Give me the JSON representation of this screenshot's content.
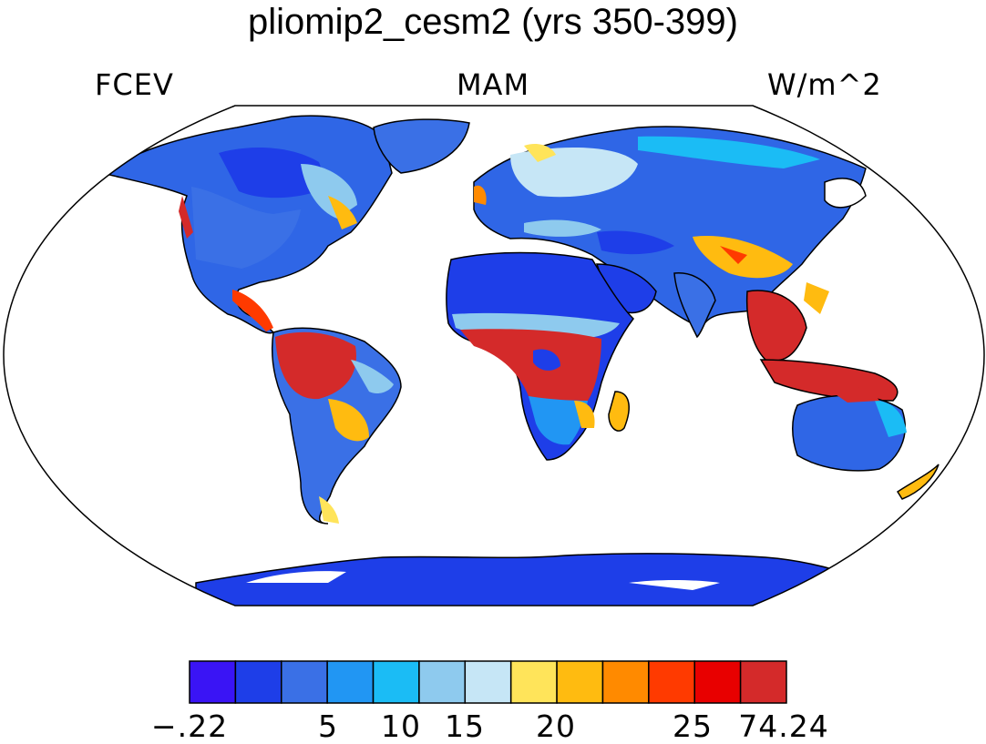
{
  "title": "pliomip2_cesm2 (yrs 350-399)",
  "left_label": "FCEV",
  "center_label": "MAM",
  "right_label": "W/m^2",
  "colorbar": {
    "colors": [
      "#3a14f5",
      "#1e3ee8",
      "#3a70e6",
      "#2196f3",
      "#1bbcf5",
      "#8ecaee",
      "#c6e6f6",
      "#ffe45a",
      "#ffbb10",
      "#ff8a00",
      "#ff3a00",
      "#e80000",
      "#d42a2a"
    ],
    "tick_labels": [
      "−.22",
      "5",
      "10",
      "15",
      "20",
      "25",
      "74.24"
    ]
  },
  "colors": {
    "ocean": "#ffffff",
    "coast": "#000000",
    "frame": "#000000"
  }
}
